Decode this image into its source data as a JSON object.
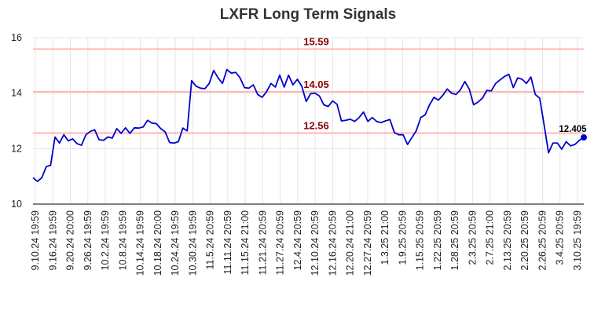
{
  "chart_data": {
    "type": "line",
    "title": "LXFR Long Term Signals",
    "xlabel": "",
    "ylabel": "",
    "ylim": [
      10,
      16
    ],
    "yticks": [
      10,
      12,
      14,
      16
    ],
    "grid": true,
    "line_color": "#0000cc",
    "level_line_color": "#ffb6b6",
    "level_label_color": "#8b0000",
    "levels": [
      {
        "value": 15.59,
        "label": "15.59"
      },
      {
        "value": 14.05,
        "label": "14.05"
      },
      {
        "value": 12.56,
        "label": "12.56"
      }
    ],
    "last_label": "12.405",
    "x_tick_labels": [
      "9.10.24 19:59",
      "9.16.24 19:59",
      "9.20.24 20:00",
      "9.26.24 19:59",
      "10.2.24 19:59",
      "10.8.24 19:59",
      "10.14.24 19:59",
      "10.18.24 20:00",
      "10.24.24 19:59",
      "10.30.24 19:59",
      "11.5.24 20:59",
      "11.11.24 20:59",
      "11.15.24 21:00",
      "11.21.24 20:59",
      "11.27.24 20:59",
      "12.4.24 20:59",
      "12.10.24 20:59",
      "12.16.24 20:59",
      "12.20.24 21:00",
      "12.27.24 20:59",
      "1.3.25 21:00",
      "1.9.25 20:59",
      "1.15.25 20:59",
      "1.22.25 20:59",
      "1.28.25 20:59",
      "2.3.25 20:59",
      "2.7.25 21:00",
      "2.13.25 20:59",
      "2.20.25 20:59",
      "2.26.25 20:59",
      "3.4.25 20:59",
      "3.10.25 19:59"
    ],
    "values": [
      10.95,
      10.82,
      10.95,
      11.35,
      11.4,
      12.42,
      12.2,
      12.5,
      12.28,
      12.35,
      12.18,
      12.12,
      12.5,
      12.62,
      12.68,
      12.32,
      12.3,
      12.42,
      12.38,
      12.72,
      12.55,
      12.75,
      12.55,
      12.75,
      12.74,
      12.78,
      13.02,
      12.92,
      12.9,
      12.72,
      12.6,
      12.22,
      12.2,
      12.25,
      12.74,
      12.64,
      14.45,
      14.25,
      14.18,
      14.16,
      14.35,
      14.82,
      14.55,
      14.35,
      14.85,
      14.72,
      14.75,
      14.55,
      14.2,
      14.18,
      14.3,
      13.95,
      13.85,
      14.05,
      14.35,
      14.22,
      14.65,
      14.22,
      14.65,
      14.3,
      14.5,
      14.25,
      13.7,
      13.98,
      14.0,
      13.9,
      13.58,
      13.52,
      13.72,
      13.6,
      13.0,
      13.02,
      13.06,
      12.98,
      13.12,
      13.32,
      12.98,
      13.12,
      12.98,
      12.94,
      13.0,
      13.05,
      12.58,
      12.5,
      12.5,
      12.15,
      12.4,
      12.65,
      13.12,
      13.22,
      13.58,
      13.85,
      13.75,
      13.92,
      14.15,
      14.0,
      13.95,
      14.12,
      14.42,
      14.15,
      13.58,
      13.68,
      13.82,
      14.1,
      14.08,
      14.35,
      14.48,
      14.6,
      14.68,
      14.2,
      14.55,
      14.5,
      14.35,
      14.58,
      13.95,
      13.82,
      12.85,
      11.85,
      12.2,
      12.2,
      11.98,
      12.25,
      12.1,
      12.15,
      12.3,
      12.405
    ]
  }
}
